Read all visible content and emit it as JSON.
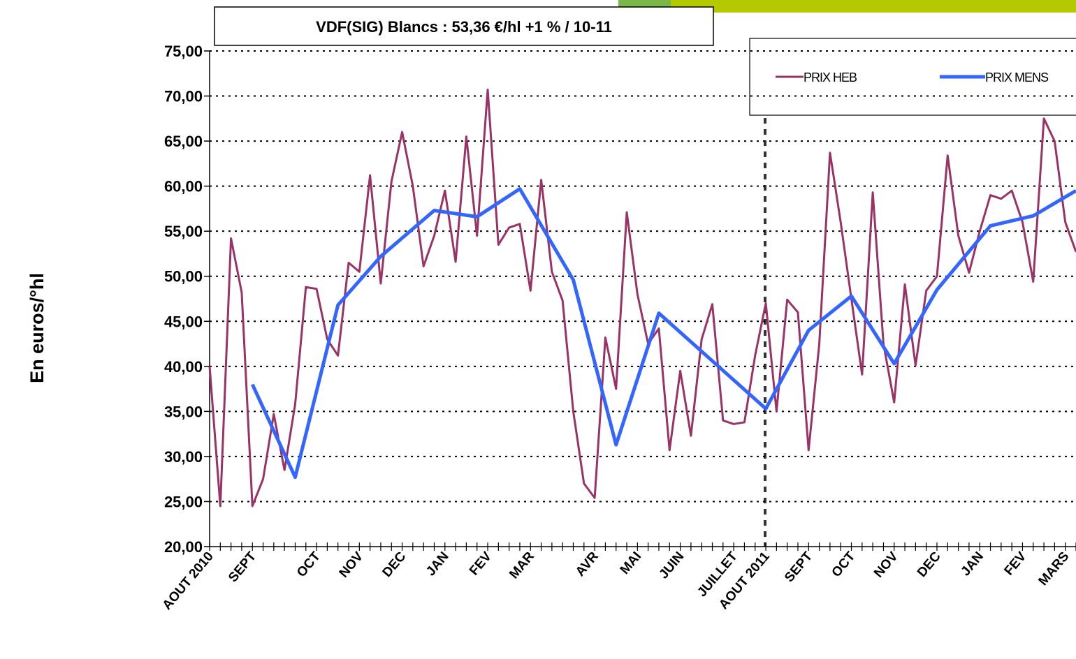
{
  "chart_data": {
    "type": "line",
    "title": "VDF(SIG) Blancs : 53,36 €/hl +1 % / 10-11",
    "y_label": "En euros/°hl",
    "categories": [
      "AOUT 2010",
      null,
      null,
      null,
      "SEPT",
      null,
      null,
      null,
      null,
      null,
      "OCT",
      null,
      null,
      null,
      "NOV",
      null,
      null,
      null,
      "DEC",
      null,
      null,
      null,
      "JAN",
      null,
      null,
      null,
      "FEV",
      null,
      null,
      null,
      "MAR",
      null,
      null,
      null,
      null,
      null,
      "AVR",
      null,
      null,
      null,
      "MAI",
      null,
      null,
      null,
      "JUIN",
      null,
      null,
      null,
      null,
      "JUILLET",
      null,
      null,
      "AOUT 2011",
      null,
      null,
      null,
      "SEPT",
      null,
      null,
      null,
      "OCT",
      null,
      null,
      null,
      "NOV",
      null,
      null,
      null,
      "DEC",
      null,
      null,
      null,
      "JAN",
      null,
      null,
      null,
      "FEV",
      null,
      null,
      null,
      "MARS",
      null
    ],
    "series": [
      {
        "name": "PRIX HEB",
        "color": "#993366",
        "values": [
          40,
          24.5,
          54.2,
          48.2,
          24.5,
          27.5,
          34.7,
          28.5,
          35.8,
          48.8,
          48.6,
          43,
          41.2,
          51.5,
          50.5,
          61.2,
          49.2,
          60.5,
          66,
          60,
          51.1,
          54.5,
          59.5,
          51.6,
          65.5,
          54.5,
          70.7,
          53.5,
          55.4,
          55.8,
          48.4,
          60.7,
          50.5,
          47.3,
          35,
          27,
          25.4,
          43.2,
          37.5,
          57.1,
          48,
          42.5,
          44.2,
          30.7,
          39.5,
          32.3,
          43,
          46.9,
          34,
          33.6,
          33.8,
          41.2,
          47,
          35,
          47.4,
          46,
          30.7,
          42.5,
          63.7,
          56,
          47.5,
          39.1,
          59.3,
          42.5,
          36,
          49.1,
          40.1,
          48.4,
          50,
          63.4,
          54.5,
          50.4,
          55,
          59,
          58.6,
          59.5,
          56,
          49.4,
          67.5,
          65,
          56,
          52.7
        ]
      },
      {
        "name": "PRIX MENS",
        "color": "#3366ff",
        "x": [
          4,
          8,
          12,
          16,
          21,
          25,
          29,
          34,
          38,
          42,
          47,
          52,
          56,
          60,
          64,
          68,
          73,
          77,
          81
        ],
        "values": [
          38,
          27.7,
          46.8,
          52.2,
          57.3,
          56.6,
          59.7,
          49.6,
          31.3,
          45.9,
          40.6,
          35.3,
          44,
          47.8,
          40.3,
          48.5,
          55.6,
          56.7,
          59.5
        ]
      }
    ],
    "ylim": [
      20,
      75
    ],
    "yticks": [
      {
        "value": 20,
        "label": "20,00"
      },
      {
        "value": 25,
        "label": "25,00"
      },
      {
        "value": 30,
        "label": "30,00"
      },
      {
        "value": 35,
        "label": "35,00"
      },
      {
        "value": 40,
        "label": "40,00"
      },
      {
        "value": 45,
        "label": "45,00"
      },
      {
        "value": 50,
        "label": "50,00"
      },
      {
        "value": 55,
        "label": "55,00"
      },
      {
        "value": 60,
        "label": "60,00"
      },
      {
        "value": 65,
        "label": "65,00"
      },
      {
        "value": 70,
        "label": "70,00"
      },
      {
        "value": 75,
        "label": "75,00"
      }
    ],
    "grid": true
  }
}
